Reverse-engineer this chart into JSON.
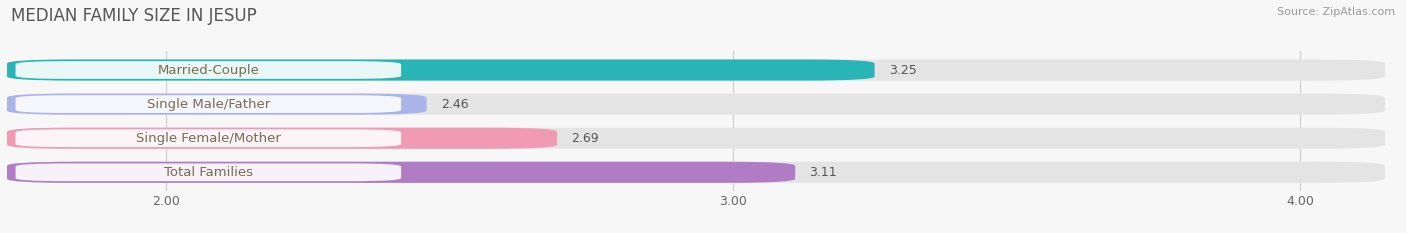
{
  "title": "MEDIAN FAMILY SIZE IN JESUP",
  "source": "Source: ZipAtlas.com",
  "categories": [
    "Married-Couple",
    "Single Male/Father",
    "Single Female/Mother",
    "Total Families"
  ],
  "values": [
    3.25,
    2.46,
    2.69,
    3.11
  ],
  "bar_colors": [
    "#29b5b5",
    "#aab4e8",
    "#f09ab5",
    "#b07cc6"
  ],
  "xlim_min": 1.72,
  "xlim_max": 4.15,
  "xticks": [
    2.0,
    3.0,
    4.0
  ],
  "xtick_labels": [
    "2.00",
    "3.00",
    "4.00"
  ],
  "bar_height": 0.62,
  "title_fontsize": 12,
  "label_fontsize": 9.5,
  "value_fontsize": 9,
  "tick_fontsize": 9,
  "background_color": "#f7f7f7",
  "bar_bg_color": "#e4e4e4",
  "label_text_color": "#7a6a50",
  "value_text_color": "#555555",
  "grid_color": "#cccccc",
  "white": "#ffffff"
}
